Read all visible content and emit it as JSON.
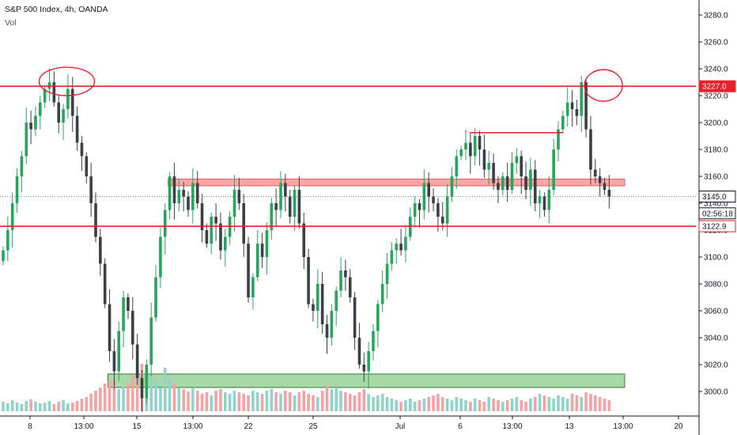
{
  "header": {
    "title": "S&P 500 Index, 4h, OANDA",
    "volume_label": "Vol"
  },
  "colors": {
    "up": "#26a65b",
    "down": "#3b3f48",
    "vol_up": "#8fd3c9",
    "vol_down": "#f3a3a3",
    "red_line": "#e8202a",
    "zone_red_fill": "#f6a8a8",
    "zone_green_fill": "#a8d8a8",
    "axis": "#131722"
  },
  "chart_data": {
    "type": "candlestick",
    "ylim": [
      2990,
      3290
    ],
    "y_ticks": [
      3000,
      3020,
      3040,
      3060,
      3080,
      3100,
      3120,
      3140,
      3160,
      3180,
      3200,
      3220,
      3240,
      3260,
      3280
    ],
    "x_tick_labels": [
      "8",
      "13:00",
      "15",
      "13:00",
      "22",
      "25",
      "Jul",
      "6",
      "13:00",
      "13",
      "13:00",
      "20"
    ],
    "price_badges": [
      {
        "label": "3227.0",
        "value": 3227.0,
        "style": "red"
      },
      {
        "label": "3145.0",
        "value": 3145.0,
        "style": "light"
      },
      {
        "label": "02:56:18",
        "value": 3132.5,
        "style": "light"
      },
      {
        "label": "3122.9",
        "value": 3122.9,
        "style": "red-outline"
      }
    ],
    "horizontal_lines": [
      {
        "value": 3227.0
      },
      {
        "value": 3122.9
      }
    ],
    "short_line": {
      "value": 3192.5,
      "x_from_candle": 101,
      "x_to_candle": 121
    },
    "dotted_line": {
      "value": 3145.0
    },
    "zones": [
      {
        "from": 3153,
        "to": 3158,
        "start_candle": 36,
        "end_candle": 134,
        "color": "red"
      },
      {
        "from": 3003,
        "to": 3013,
        "start_candle": 23,
        "end_candle": 134,
        "color": "green"
      }
    ],
    "circled_highs": [
      {
        "candle": 10,
        "value": 3233
      },
      {
        "candle": 126,
        "value": 3230
      }
    ],
    "closes": [
      3105,
      3120,
      3140,
      3160,
      3175,
      3200,
      3195,
      3205,
      3215,
      3225,
      3230,
      3215,
      3200,
      3210,
      3225,
      3205,
      3185,
      3175,
      3160,
      3140,
      3115,
      3095,
      3065,
      3030,
      3015,
      3045,
      3070,
      3060,
      3035,
      3010,
      2995,
      3020,
      3055,
      3085,
      3115,
      3135,
      3160,
      3140,
      3150,
      3145,
      3135,
      3155,
      3140,
      3120,
      3110,
      3130,
      3125,
      3105,
      3115,
      3130,
      3150,
      3140,
      3110,
      3070,
      3085,
      3110,
      3100,
      3120,
      3140,
      3135,
      3155,
      3145,
      3130,
      3150,
      3125,
      3100,
      3065,
      3060,
      3080,
      3050,
      3040,
      3060,
      3075,
      3090,
      3085,
      3070,
      3040,
      3020,
      3015,
      3030,
      3045,
      3065,
      3080,
      3095,
      3105,
      3110,
      3105,
      3115,
      3130,
      3140,
      3135,
      3155,
      3145,
      3140,
      3130,
      3125,
      3145,
      3160,
      3175,
      3180,
      3185,
      3175,
      3190,
      3180,
      3165,
      3170,
      3155,
      3150,
      3160,
      3150,
      3170,
      3175,
      3160,
      3150,
      3165,
      3140,
      3145,
      3135,
      3150,
      3180,
      3195,
      3205,
      3215,
      3210,
      3205,
      3230,
      3195,
      3165,
      3160,
      3155,
      3150,
      3145
    ],
    "volumes": [
      12,
      10,
      14,
      11,
      9,
      13,
      15,
      12,
      10,
      11,
      13,
      9,
      12,
      14,
      10,
      11,
      13,
      16,
      18,
      22,
      26,
      30,
      35,
      38,
      40,
      28,
      32,
      35,
      45,
      52,
      60,
      48,
      42,
      38,
      30,
      55,
      42,
      35,
      30,
      28,
      25,
      30,
      26,
      22,
      24,
      20,
      26,
      28,
      24,
      22,
      26,
      24,
      22,
      20,
      26,
      24,
      22,
      26,
      28,
      24,
      22,
      26,
      24,
      20,
      24,
      26,
      22,
      20,
      18,
      26,
      32,
      28,
      30,
      26,
      24,
      22,
      20,
      24,
      28,
      22,
      18,
      20,
      22,
      18,
      16,
      14,
      12,
      14,
      16,
      12,
      14,
      16,
      18,
      20,
      22,
      18,
      16,
      14,
      18,
      16,
      14,
      12,
      16,
      14,
      12,
      18,
      16,
      14,
      12,
      14,
      16,
      18,
      14,
      12,
      16,
      18,
      22,
      20,
      18,
      16,
      20,
      18,
      16,
      22,
      20,
      18,
      24,
      22,
      20,
      18,
      16,
      14
    ]
  }
}
